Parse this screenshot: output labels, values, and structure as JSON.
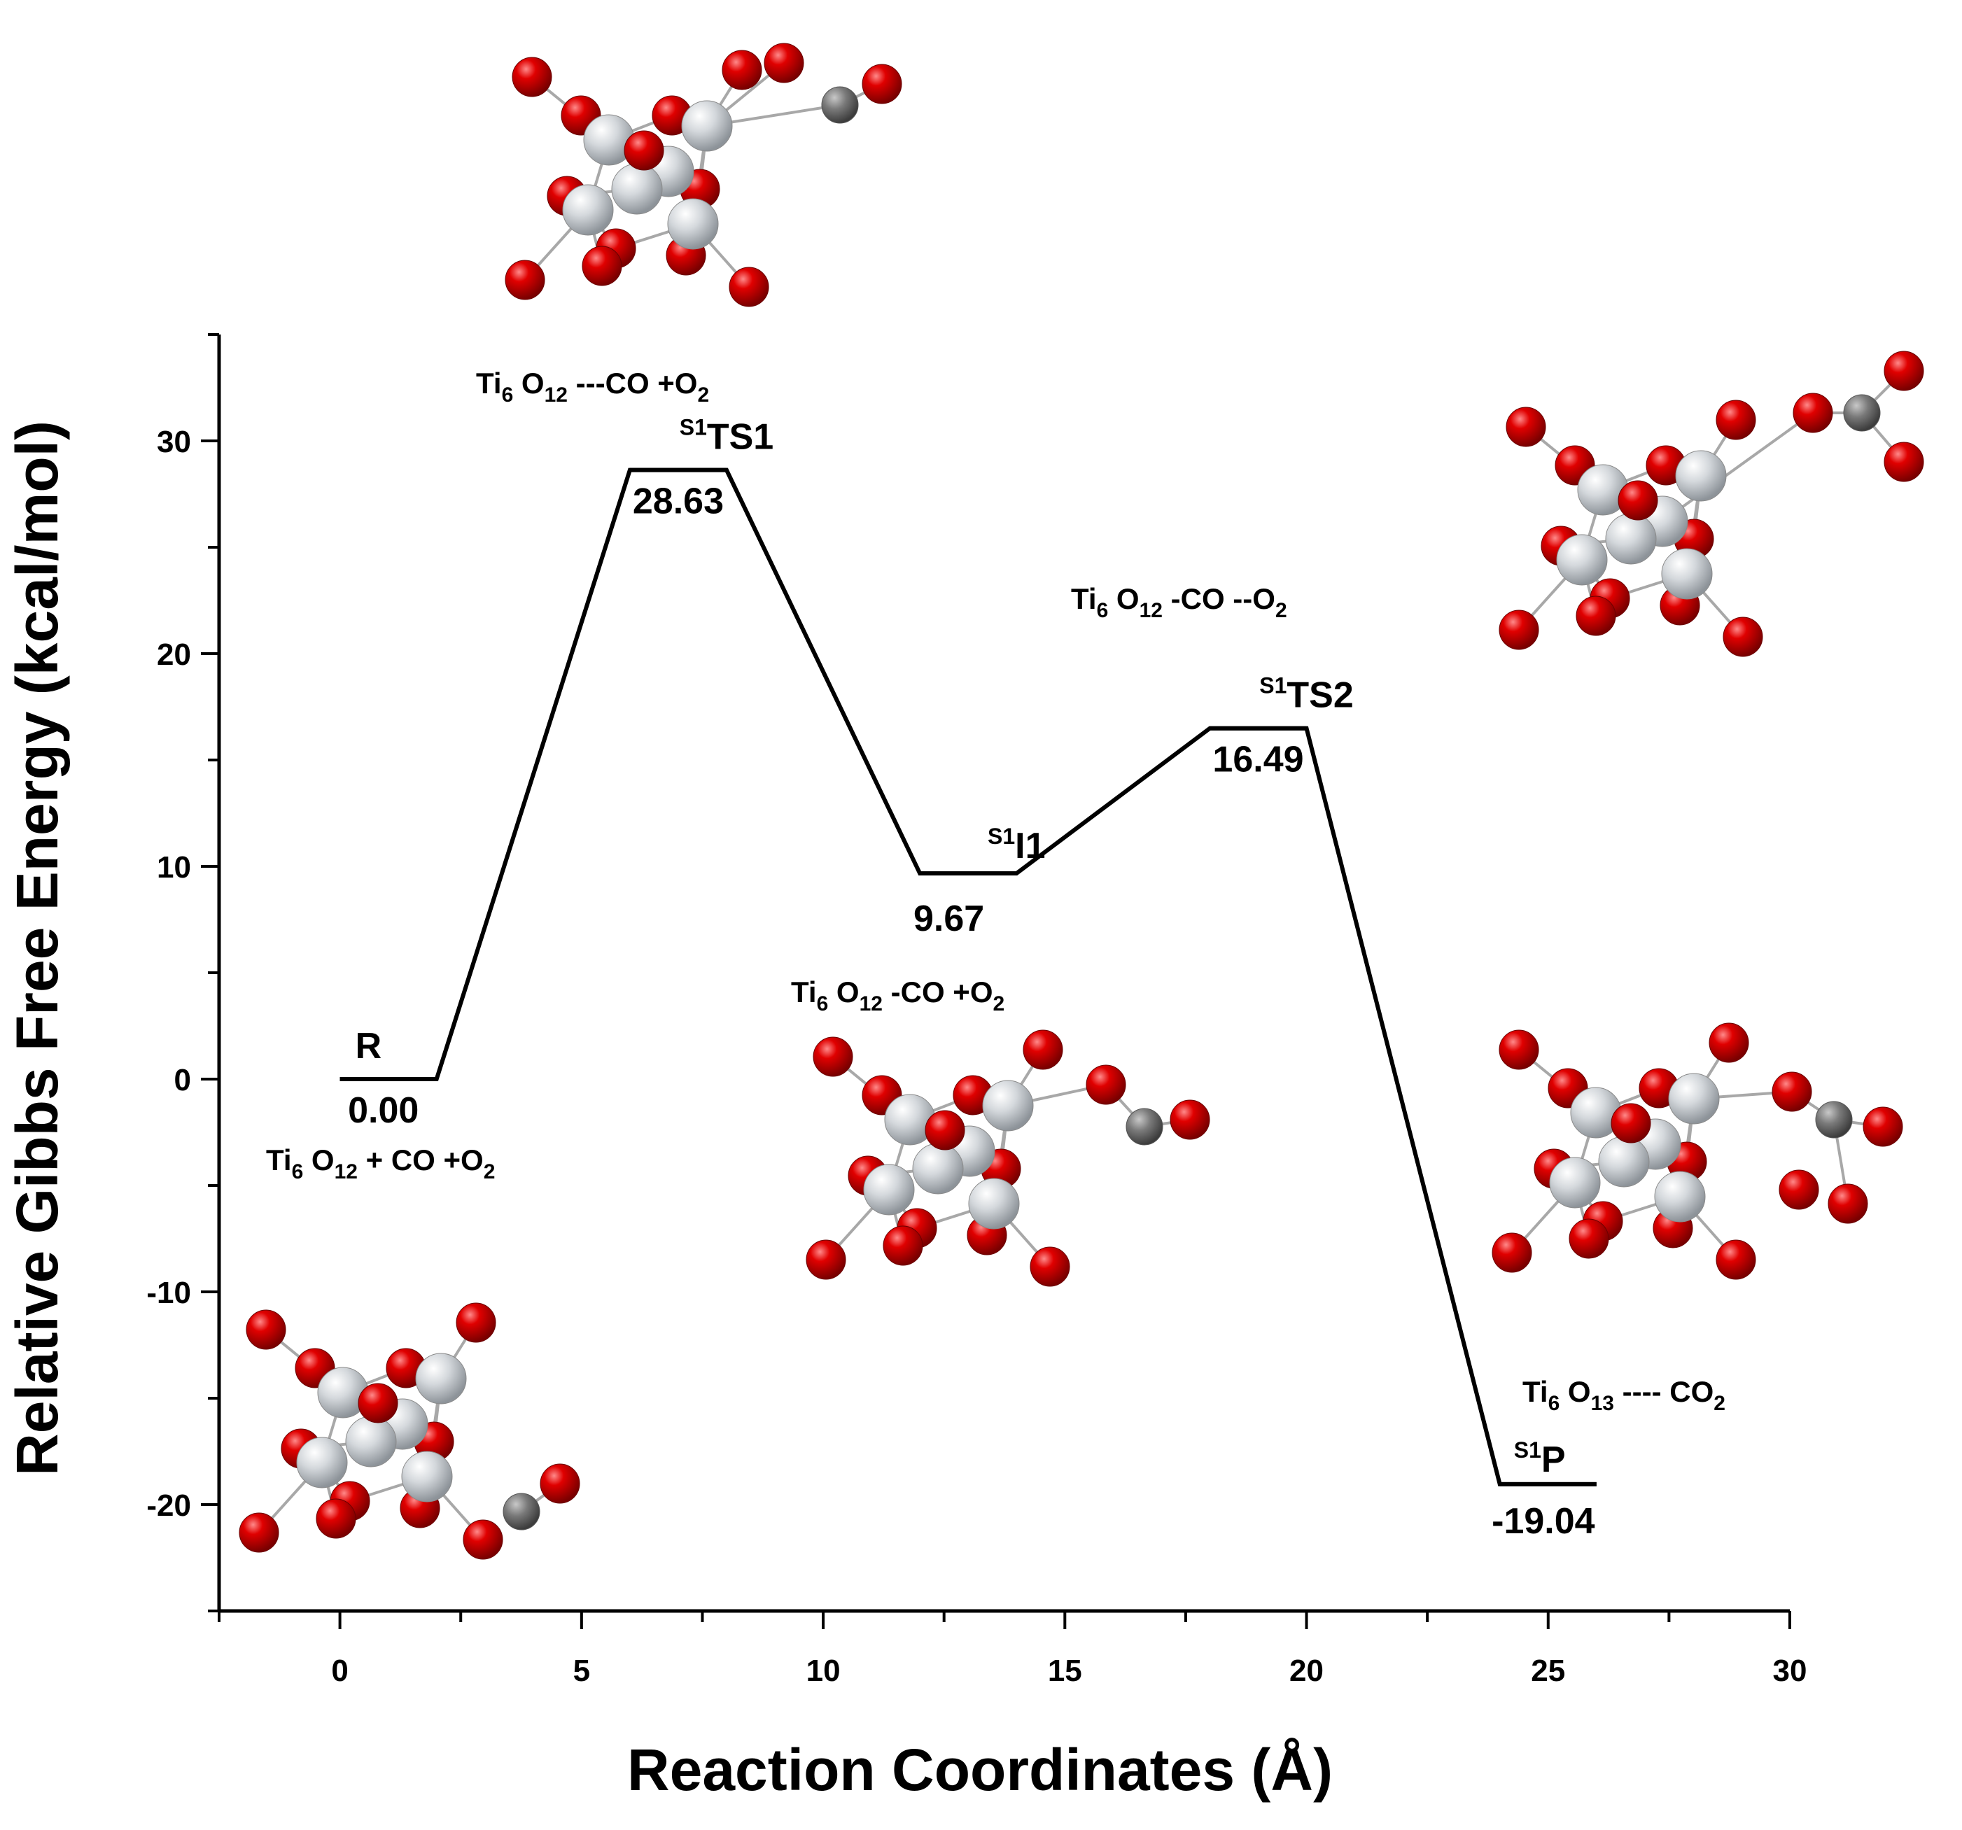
{
  "chart_data": {
    "type": "line",
    "title": "",
    "xlabel": "Reaction Coordinates (Å)",
    "ylabel": "Relative Gibbs Free Energy (kcal/mol)",
    "xlim": [
      -2.5,
      30
    ],
    "ylim": [
      -25,
      35
    ],
    "xticks": [
      0,
      5,
      10,
      15,
      20,
      25,
      30
    ],
    "yticks": [
      -20,
      -10,
      0,
      10,
      20,
      30
    ],
    "xtick_labels": [
      "0",
      "5",
      "10",
      "15",
      "20",
      "25",
      "30"
    ],
    "ytick_labels": [
      "-20",
      "-10",
      "0",
      "10",
      "20",
      "30"
    ],
    "grid": false,
    "states": [
      {
        "id": "R",
        "label": "R",
        "sup": "",
        "value": 0.0,
        "value_label": "0.00",
        "x_start": 0,
        "x_end": 2,
        "species": {
          "t1": "Ti",
          "s1": "6",
          "t2": " O",
          "s2": "12",
          "t3": " + CO +O",
          "s3": "2"
        }
      },
      {
        "id": "TS1",
        "label": "TS1",
        "sup": "S1",
        "value": 28.63,
        "value_label": "28.63",
        "x_start": 6,
        "x_end": 8,
        "species": {
          "t1": "Ti",
          "s1": "6",
          "t2": " O",
          "s2": "12",
          "t3": " ---CO +O",
          "s3": "2"
        }
      },
      {
        "id": "I1",
        "label": "I1",
        "sup": "S1",
        "value": 9.67,
        "value_label": "9.67",
        "x_start": 12,
        "x_end": 14,
        "species": {
          "t1": "Ti",
          "s1": "6",
          "t2": " O",
          "s2": "12",
          "t3": " -CO +O",
          "s3": "2"
        }
      },
      {
        "id": "TS2",
        "label": "TS2",
        "sup": "S1",
        "value": 16.49,
        "value_label": "16.49",
        "x_start": 18,
        "x_end": 20,
        "species": {
          "t1": "Ti",
          "s1": "6",
          "t2": " O",
          "s2": "12",
          "t3": " -CO --O",
          "s3": "2"
        }
      },
      {
        "id": "P",
        "label": "P",
        "sup": "S1",
        "value": -19.04,
        "value_label": "-19.04",
        "x_start": 24,
        "x_end": 26,
        "species": {
          "t1": "Ti",
          "s1": "6",
          "t2": " O",
          "s2": "13",
          "t3": " ---- CO",
          "s3": "2"
        }
      }
    ]
  },
  "colors": {
    "line": "#000000",
    "oxygen": "#d40000",
    "titanium": "#d9dde2",
    "carbon": "#7a7a7a",
    "bond": "#a8a8a8"
  },
  "molecule_images": [
    "Ti6O12 + CO + O2 structure",
    "TS1 structure",
    "I1 structure",
    "TS2 structure",
    "P structure"
  ]
}
